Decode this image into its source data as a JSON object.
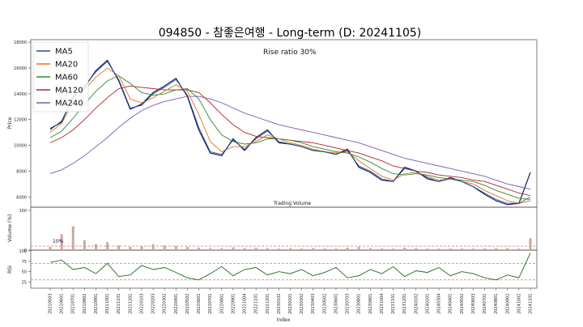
{
  "chart_data": {
    "type": "line",
    "title": "094850 - 참좋은여행 - Long-term (D: 20241105)",
    "annotation": "Rise ratio 30%",
    "xlabel": "Index",
    "ylabel_price": "Price",
    "ylabel_volume": "Volume (%)",
    "ylabel_rsi": "RSI",
    "volume_title": "Trading Volume",
    "volume_marker_label": "10%",
    "legend": [
      "MA5",
      "MA20",
      "MA60",
      "MA120",
      "MA240"
    ],
    "legend_position": "top-left",
    "colors": {
      "price": "#0b1f5c",
      "MA5": "#1f4e9e",
      "MA20": "#e8741a",
      "MA60": "#2e8b2e",
      "MA120": "#b0242a",
      "MA240": "#7a5ab4",
      "rsi": "#1e6b1e",
      "ref_line": "#d9534f",
      "volume_bar": "#c8a8a0"
    },
    "price_yticks": [
      6000,
      8000,
      10000,
      12000,
      14000,
      16000,
      18000
    ],
    "price_ylim": [
      5200,
      18200
    ],
    "volume_yticks": [
      0,
      100
    ],
    "rsi_yticks": [
      25,
      50,
      75,
      100
    ],
    "rsi_ylim": [
      10,
      102
    ],
    "rsi_levels": [
      70,
      30
    ],
    "x_dates": [
      "20210503",
      "20210601",
      "20210701",
      "20210802",
      "20210901",
      "20211001",
      "20211101",
      "20211201",
      "20220103",
      "20220203",
      "20220302",
      "20220401",
      "20220502",
      "20220601",
      "20220701",
      "20220801",
      "20220901",
      "20221004",
      "20221101",
      "20221201",
      "20230102",
      "20230201",
      "20230302",
      "20230403",
      "20230502",
      "20230601",
      "20230703",
      "20230801",
      "20230901",
      "20231004",
      "20231101",
      "20231201",
      "20240102",
      "20240201",
      "20240304",
      "20240401",
      "20240502",
      "20240603",
      "20240701",
      "20240801",
      "20240902",
      "20241002",
      "20241101"
    ],
    "close": [
      11300,
      11800,
      13800,
      14500,
      15800,
      16600,
      15000,
      12800,
      13200,
      14100,
      14600,
      15200,
      13800,
      11200,
      9400,
      9200,
      10500,
      9600,
      10600,
      11200,
      10200,
      10100,
      9900,
      9600,
      9500,
      9300,
      9700,
      8300,
      7900,
      7300,
      7200,
      8300,
      8000,
      7400,
      7200,
      7500,
      7200,
      6800,
      6200,
      5700,
      5400,
      5500,
      7900
    ],
    "ma5": [
      11200,
      11900,
      13700,
      14600,
      15700,
      16500,
      15100,
      12900,
      13100,
      14000,
      14500,
      15100,
      13900,
      11400,
      9500,
      9300,
      10400,
      9700,
      10500,
      11100,
      10300,
      10100,
      9900,
      9600,
      9500,
      9300,
      9600,
      8400,
      8000,
      7400,
      7200,
      8200,
      8000,
      7500,
      7200,
      7400,
      7200,
      6800,
      6300,
      5800,
      5500,
      5500,
      6000
    ],
    "ma20": [
      11000,
      11700,
      13300,
      14300,
      15300,
      16000,
      15400,
      13600,
      13300,
      13700,
      14200,
      14700,
      14200,
      12400,
      10300,
      9500,
      9900,
      9900,
      10300,
      10800,
      10500,
      10200,
      10000,
      9700,
      9500,
      9400,
      9500,
      8800,
      8200,
      7600,
      7300,
      7800,
      7900,
      7600,
      7300,
      7400,
      7200,
      7000,
      6500,
      6100,
      5700,
      5500,
      5700
    ],
    "ma60": [
      10600,
      11100,
      12100,
      13200,
      14200,
      15000,
      15400,
      14800,
      14100,
      13900,
      14000,
      14300,
      14400,
      13600,
      12000,
      10800,
      10300,
      10100,
      10200,
      10500,
      10500,
      10400,
      10200,
      9900,
      9700,
      9500,
      9400,
      9100,
      8700,
      8200,
      7800,
      7700,
      7800,
      7700,
      7500,
      7400,
      7300,
      7200,
      6900,
      6500,
      6200,
      5900,
      5800
    ],
    "ma120": [
      10200,
      10600,
      11200,
      12000,
      12900,
      13700,
      14400,
      14600,
      14500,
      14400,
      14300,
      14300,
      14300,
      14100,
      13300,
      12400,
      11600,
      11000,
      10700,
      10600,
      10500,
      10400,
      10300,
      10200,
      10000,
      9800,
      9600,
      9400,
      9100,
      8800,
      8400,
      8200,
      8000,
      7900,
      7700,
      7600,
      7500,
      7300,
      7200,
      6900,
      6600,
      6300,
      6100
    ],
    "ma240": [
      7800,
      8100,
      8600,
      9200,
      9900,
      10600,
      11400,
      12100,
      12700,
      13100,
      13400,
      13600,
      13800,
      13800,
      13600,
      13300,
      12900,
      12500,
      12200,
      11900,
      11600,
      11400,
      11200,
      11000,
      10800,
      10600,
      10400,
      10200,
      9900,
      9600,
      9300,
      9000,
      8800,
      8600,
      8400,
      8200,
      8000,
      7800,
      7600,
      7300,
      7000,
      6800,
      6600
    ],
    "volume": [
      8,
      40,
      60,
      25,
      15,
      20,
      12,
      8,
      10,
      15,
      12,
      10,
      8,
      6,
      5,
      5,
      7,
      5,
      6,
      5,
      4,
      5,
      4,
      5,
      4,
      4,
      6,
      8,
      5,
      4,
      4,
      6,
      5,
      4,
      4,
      4,
      4,
      4,
      4,
      5,
      5,
      4,
      30
    ],
    "rsi": [
      72,
      78,
      55,
      60,
      45,
      70,
      38,
      42,
      65,
      55,
      60,
      48,
      35,
      30,
      45,
      62,
      40,
      55,
      60,
      42,
      50,
      45,
      55,
      40,
      48,
      60,
      35,
      40,
      55,
      45,
      62,
      38,
      52,
      48,
      60,
      40,
      50,
      45,
      35,
      30,
      42,
      35,
      95
    ]
  }
}
